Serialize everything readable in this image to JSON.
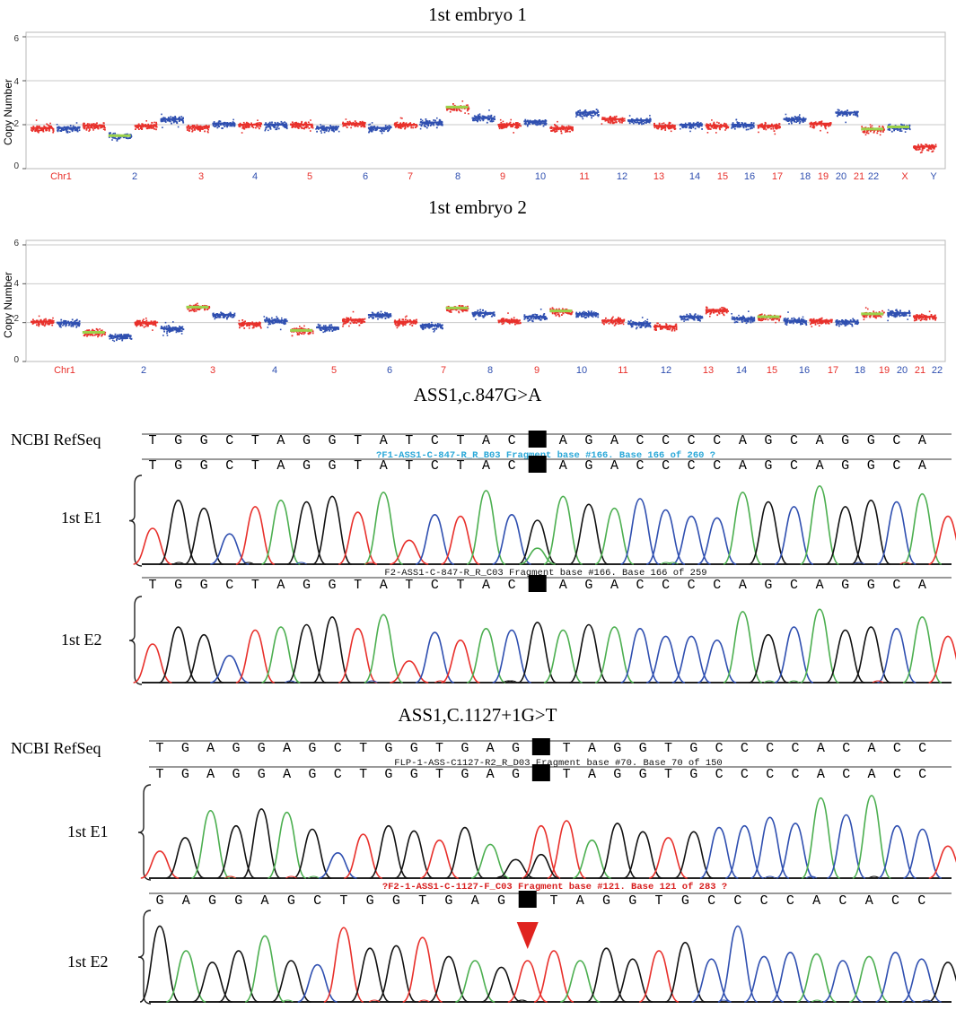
{
  "colors": {
    "red": "#e8302b",
    "blue": "#2f4fb0",
    "green": "#4caf50",
    "black": "#111111",
    "lime": "#9bd24a",
    "sel_green": "#3fd17a",
    "arrow": "#e0231f"
  },
  "cnv_panels": [
    {
      "title": "1st embryo 1",
      "ylabel": "Copy Number",
      "yticks": [
        "0",
        "2",
        "4",
        "6"
      ],
      "chromosomes": [
        "Chr1",
        "2",
        "3",
        "4",
        "5",
        "6",
        "7",
        "8",
        "9",
        "10",
        "11",
        "12",
        "13",
        "14",
        "15",
        "16",
        "17",
        "18",
        "19",
        "20",
        "21",
        "22",
        "X",
        "Y"
      ],
      "segments": [
        {
          "cn": 1.85
        },
        {
          "cn": 1.85
        },
        {
          "cn": 1.95
        },
        {
          "cn": 1.5,
          "mosaic": true
        },
        {
          "cn": 1.95
        },
        {
          "cn": 2.25
        },
        {
          "cn": 1.9
        },
        {
          "cn": 2.05
        },
        {
          "cn": 2.0
        },
        {
          "cn": 2.0
        },
        {
          "cn": 2.0
        },
        {
          "cn": 1.85
        },
        {
          "cn": 2.05
        },
        {
          "cn": 1.85
        },
        {
          "cn": 2.0
        },
        {
          "cn": 2.1
        },
        {
          "cn": 2.8,
          "mosaic": true
        },
        {
          "cn": 2.3
        },
        {
          "cn": 2.0
        },
        {
          "cn": 2.15
        },
        {
          "cn": 1.85
        },
        {
          "cn": 2.55
        },
        {
          "cn": 2.25
        },
        {
          "cn": 2.2
        },
        {
          "cn": 1.95
        },
        {
          "cn": 2.0
        },
        {
          "cn": 1.95
        },
        {
          "cn": 2.0
        },
        {
          "cn": 1.95
        },
        {
          "cn": 2.25
        },
        {
          "cn": 2.05
        },
        {
          "cn": 2.55
        },
        {
          "cn": 1.8,
          "mosaic": true
        },
        {
          "cn": 1.9,
          "mosaic": true
        },
        {
          "cn": 1.0
        }
      ]
    },
    {
      "title": "1st embryo 2",
      "ylabel": "Copy Number",
      "yticks": [
        "0",
        "2",
        "4",
        "6"
      ],
      "chromosomes": [
        "Chr1",
        "2",
        "3",
        "4",
        "5",
        "6",
        "7",
        "8",
        "9",
        "10",
        "11",
        "12",
        "13",
        "14",
        "15",
        "16",
        "17",
        "18",
        "19",
        "20",
        "21",
        "22"
      ],
      "segments": [
        {
          "cn": 2.05
        },
        {
          "cn": 2.0
        },
        {
          "cn": 1.5,
          "mosaic": true
        },
        {
          "cn": 1.3
        },
        {
          "cn": 2.0
        },
        {
          "cn": 1.7
        },
        {
          "cn": 2.8,
          "mosaic": true
        },
        {
          "cn": 2.4
        },
        {
          "cn": 1.95
        },
        {
          "cn": 2.1
        },
        {
          "cn": 1.6,
          "mosaic": true
        },
        {
          "cn": 1.75
        },
        {
          "cn": 2.15
        },
        {
          "cn": 2.4
        },
        {
          "cn": 2.05
        },
        {
          "cn": 1.85
        },
        {
          "cn": 2.75,
          "mosaic": true
        },
        {
          "cn": 2.5
        },
        {
          "cn": 2.1
        },
        {
          "cn": 2.3
        },
        {
          "cn": 2.6,
          "mosaic": true
        },
        {
          "cn": 2.45
        },
        {
          "cn": 2.1
        },
        {
          "cn": 1.95
        },
        {
          "cn": 1.8
        },
        {
          "cn": 2.3
        },
        {
          "cn": 2.65
        },
        {
          "cn": 2.2
        },
        {
          "cn": 2.3,
          "mosaic": true
        },
        {
          "cn": 2.1
        },
        {
          "cn": 2.1
        },
        {
          "cn": 2.05
        },
        {
          "cn": 2.45,
          "mosaic": true
        },
        {
          "cn": 2.5
        },
        {
          "cn": 2.3
        }
      ]
    }
  ],
  "seq_sections": [
    {
      "title": "ASS1,c.847G>A",
      "ref_label": "NCBI RefSeq",
      "ref_seq": "TGGCTAGGTATCTACGAGACCCCAGCAGGCA",
      "variant_index": 15,
      "tracks": [
        {
          "label": "1st E1",
          "fragment": "?F1-ASS1-C-847-R_R_B03 Fragment base #166. Base 166 of 260 ?",
          "frag_color": "#2aa8d8",
          "seq": "TGGCTAGGTATCTACRAGACCCCAGCAGGCA",
          "hl_index": 15,
          "hl_text_color": "#3fd17a",
          "peaks": [
            0.45,
            0.8,
            0.7,
            0.38,
            0.72,
            0.8,
            0.78,
            0.85,
            0.65,
            0.9,
            0.3,
            0.62,
            0.6,
            0.92,
            0.62,
            0.55,
            0.85,
            0.75,
            0.7,
            0.82,
            0.68,
            0.6,
            0.58,
            0.9,
            0.78,
            0.72,
            0.98,
            0.72,
            0.8,
            0.78,
            0.88,
            0.6
          ],
          "secondary": {
            "index": 15,
            "base": "A",
            "height": 0.2
          }
        },
        {
          "label": "1st E2",
          "fragment": "F2-ASS1-C-847-R_R_C03 Fragment base #166. Base 166 of 259",
          "frag_color": "#111111",
          "seq": "TGGCTAGGTATCTACGAGACCCCAGCAGGCA",
          "hl_index": 15,
          "hl_text_color": "#ffffff",
          "peaks": [
            0.5,
            0.72,
            0.62,
            0.35,
            0.68,
            0.72,
            0.75,
            0.85,
            0.7,
            0.88,
            0.28,
            0.65,
            0.55,
            0.7,
            0.68,
            0.78,
            0.68,
            0.75,
            0.72,
            0.7,
            0.6,
            0.6,
            0.55,
            0.92,
            0.62,
            0.72,
            0.95,
            0.68,
            0.72,
            0.7,
            0.85,
            0.6
          ]
        }
      ]
    },
    {
      "title": "ASS1,C.1127+1G>T",
      "ref_label": "NCBI RefSeq",
      "ref_seq": "TGAGGAGCTGGTGAGGTAGGTGCCCCACACC",
      "variant_index": 15,
      "tracks": [
        {
          "label": "1st E1",
          "fragment": "FLP-1-ASS-C1127-R2_R_D03 Fragment base #70. Base 70 of 150",
          "frag_color": "#111111",
          "seq": "TGAGGAGCTGGTGAGKTAGGTGCCCCACACC",
          "hl_index": 15,
          "hl_text_color": "#3fd17a",
          "peaks": [
            0.32,
            0.48,
            0.8,
            0.62,
            0.82,
            0.78,
            0.58,
            0.3,
            0.52,
            0.62,
            0.56,
            0.45,
            0.6,
            0.4,
            0.22,
            0.62,
            0.68,
            0.45,
            0.65,
            0.55,
            0.48,
            0.55,
            0.6,
            0.62,
            0.72,
            0.65,
            0.95,
            0.75,
            0.98,
            0.62,
            0.58,
            0.38
          ],
          "secondary": {
            "index": 15,
            "base": "G",
            "height": 0.28
          }
        },
        {
          "label": "1st E2",
          "fragment": "?F2-1-ASS1-C-1127-F_C03 Fragment base #121. Base 121 of 283 ?",
          "frag_color": "#d81e1e",
          "seq": "GAGGAGCTGGTGAGTTAGGTGCCCCACACC",
          "hl_index": 14,
          "hl_text_color": "#ffffff",
          "marker_index": 14,
          "peaks": [
            0.92,
            0.62,
            0.48,
            0.62,
            0.8,
            0.5,
            0.45,
            0.9,
            0.65,
            0.68,
            0.78,
            0.55,
            0.5,
            0.42,
            0.5,
            0.62,
            0.5,
            0.65,
            0.52,
            0.62,
            0.72,
            0.52,
            0.92,
            0.55,
            0.6,
            0.58,
            0.5,
            0.55,
            0.6,
            0.52,
            0.48
          ]
        }
      ]
    }
  ]
}
